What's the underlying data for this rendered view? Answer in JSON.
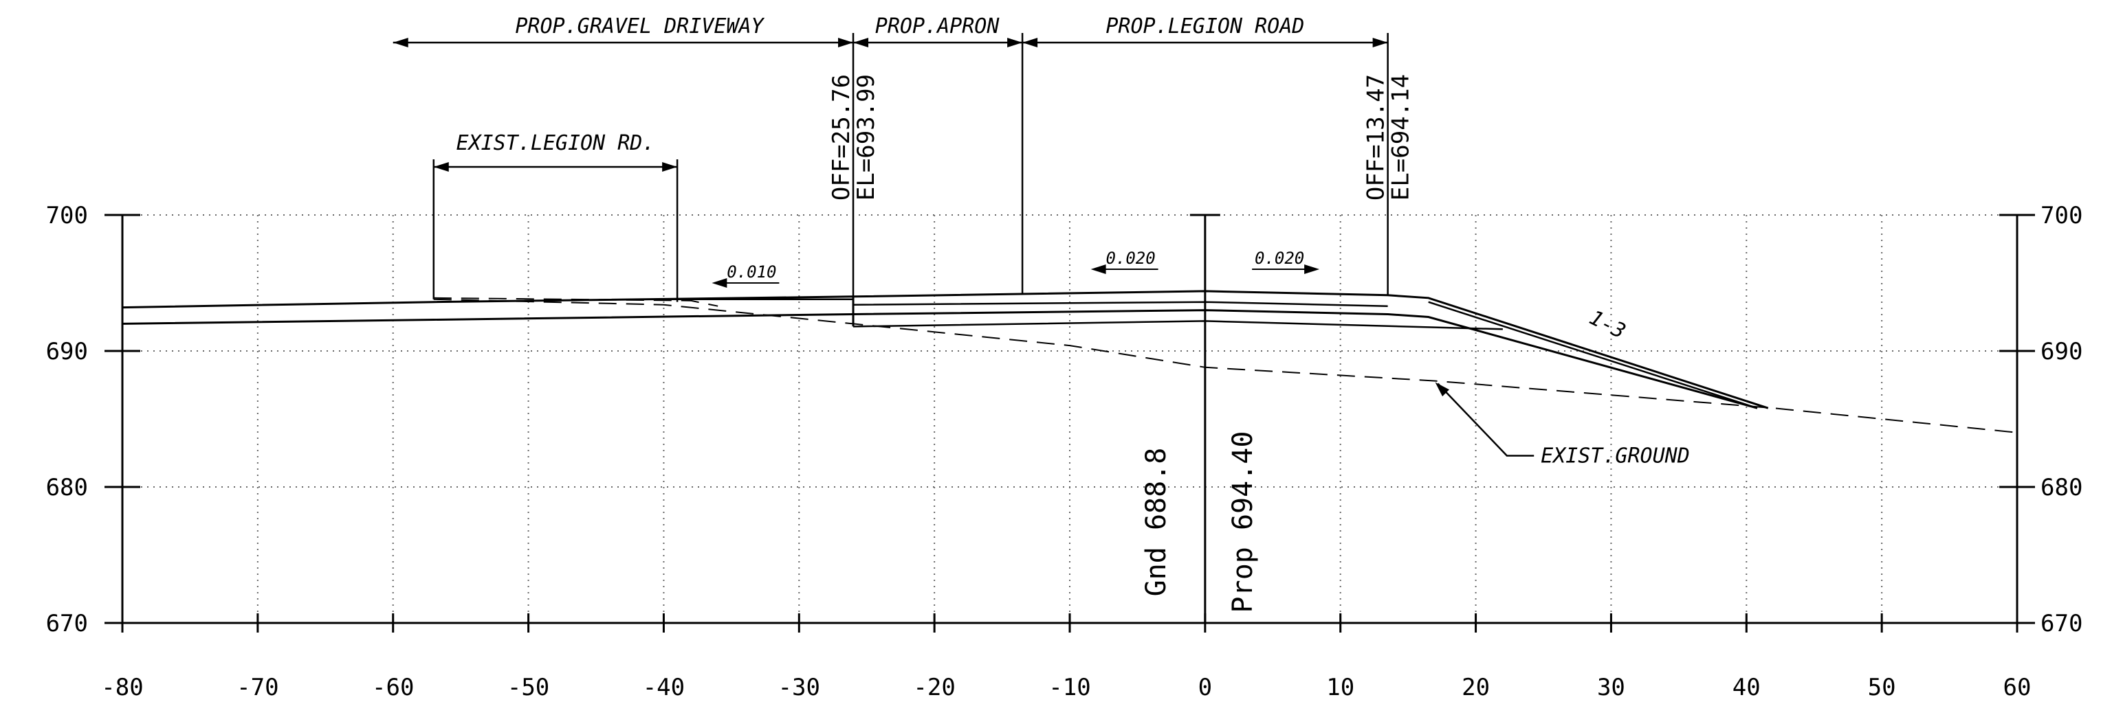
{
  "chart_data": {
    "type": "cross-section",
    "xlim": [
      -80,
      60
    ],
    "ylim": [
      670,
      700
    ],
    "x_ticks": [
      "-80",
      "-70",
      "-60",
      "-50",
      "-40",
      "-30",
      "-20",
      "-10",
      "0",
      "10",
      "20",
      "30",
      "40",
      "50",
      "60"
    ],
    "y_ticks": [
      "700",
      "690",
      "680",
      "670"
    ],
    "grid": true,
    "labels": {
      "gravel_driveway": "PROP.GRAVEL DRIVEWAY",
      "apron": "PROP.APRON",
      "legion_road": "PROP.LEGION ROAD",
      "exist_legion": "EXIST.LEGION RD.",
      "exist_ground": "EXIST.GROUND",
      "left_off": "OFF=25.76",
      "left_el": "EL=693.99",
      "right_off": "OFF=13.47",
      "right_el": "EL=694.14",
      "slope_left": "0.010",
      "slope_mid": "0.020",
      "slope_right": "0.020",
      "side_slope": "1:3",
      "gnd": "Gnd 688.8",
      "prop": "Prop 694.40"
    },
    "proposed_top": [
      [
        -80,
        693.2
      ],
      [
        -57,
        693.6
      ],
      [
        -26,
        694.0
      ],
      [
        0,
        694.4
      ],
      [
        13.5,
        694.1
      ],
      [
        16.5,
        693.9
      ],
      [
        41.6,
        685.8
      ]
    ],
    "proposed_bottom": [
      [
        -80,
        692.0
      ],
      [
        -57,
        692.3
      ],
      [
        -26,
        692.7
      ],
      [
        0,
        693.0
      ],
      [
        13.5,
        692.7
      ],
      [
        16.5,
        692.5
      ],
      [
        40.8,
        685.8
      ]
    ],
    "pavement_lines": {
      "driveway_bottom": [
        [
          -40,
          693.8
        ],
        [
          -26,
          693.8
        ]
      ],
      "apron_lines": [
        [
          -26,
          693.4
        ],
        [
          0,
          693.6
        ],
        [
          13.5,
          693.3
        ]
      ],
      "subbase_lower": [
        [
          -26,
          691.8
        ],
        [
          0,
          692.2
        ],
        [
          22,
          691.6
        ]
      ]
    },
    "existing_ground": [
      [
        -57,
        693.8
      ],
      [
        -40,
        693.4
      ],
      [
        -26,
        692.0
      ],
      [
        -10,
        690.4
      ],
      [
        0,
        688.8
      ],
      [
        17,
        687.8
      ],
      [
        42,
        685.8
      ],
      [
        60,
        684.0
      ]
    ],
    "existing_legion_surface": [
      [
        -57,
        693.9
      ],
      [
        -38,
        693.7
      ],
      [
        -36,
        693.3
      ]
    ]
  }
}
